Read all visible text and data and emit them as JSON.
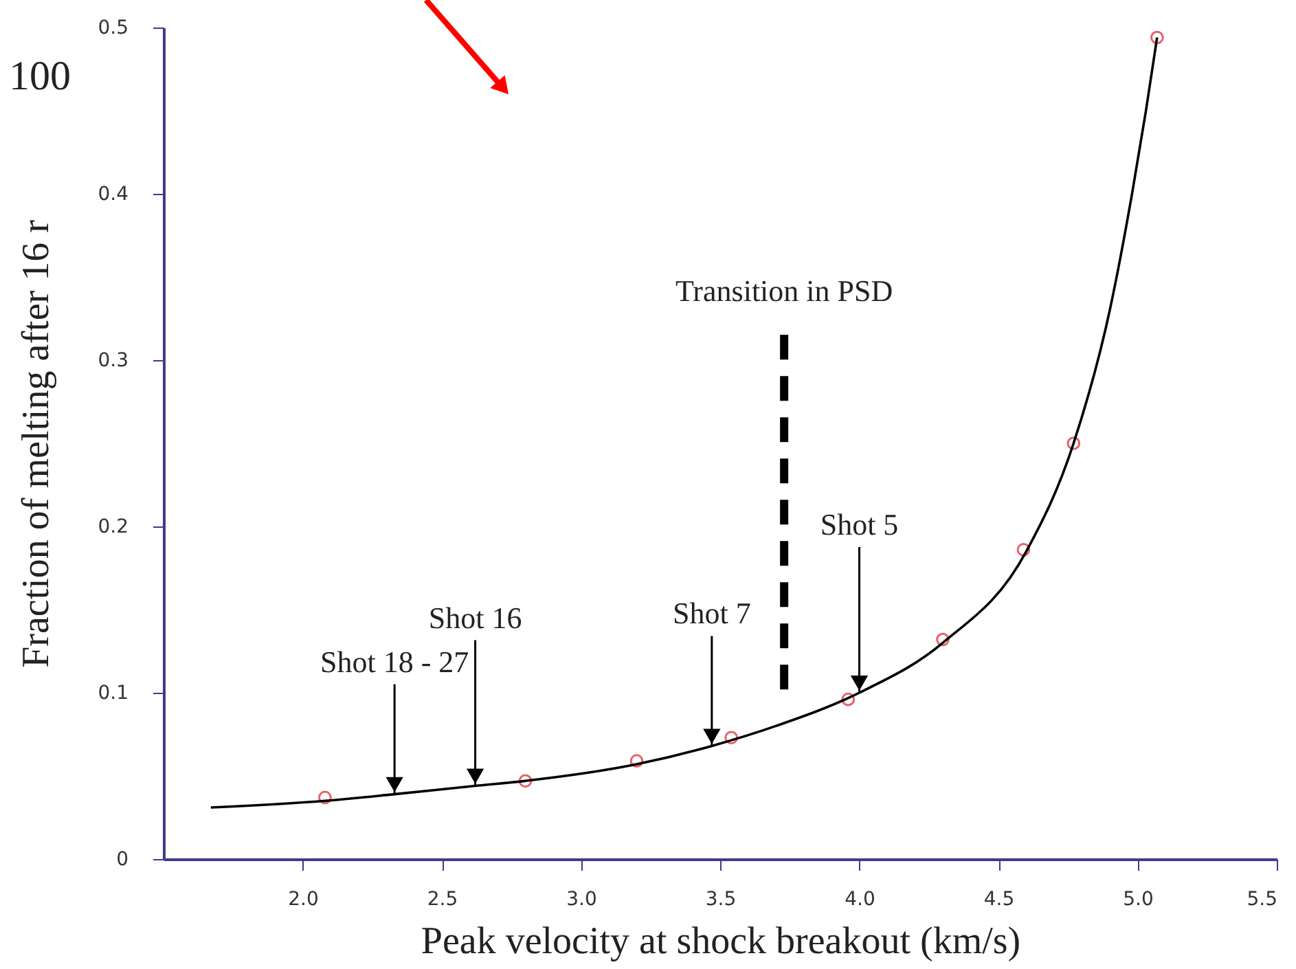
{
  "chart_data": {
    "type": "scatter",
    "xlabel": "Peak velocity at shock breakout (km/s)",
    "ylabel": "Fraction of melting after 16 r",
    "xlim": [
      1.5,
      5.5
    ],
    "xticks": [
      {
        "value": 2,
        "label": "2.0"
      },
      2.5,
      {
        "value": 3,
        "label": "3.0"
      },
      3.5,
      {
        "value": 4,
        "label": "4.0"
      },
      4.5,
      {
        "value": 5,
        "label": "5.0"
      },
      5.5
    ],
    "ylim": [
      0,
      0.5
    ],
    "yticks": [
      0,
      0.1,
      0.2,
      0.3,
      0.4,
      0.5
    ],
    "grid": false,
    "series": [
      {
        "color": "#e0202a",
        "marker": "circle",
        "x": [
          2.08,
          2.8,
          3.2,
          3.54,
          3.96,
          4.3,
          4.59,
          4.77,
          5.07
        ],
        "values": [
          0.037,
          0.047,
          0.059,
          0.073,
          0.096,
          0.132,
          0.186,
          0.25,
          0.494
        ]
      },
      {
        "type": "line",
        "color": "#000000",
        "x": [
          1.67,
          2.08,
          2.33,
          2.62,
          2.8,
          3.2,
          3.47,
          3.7,
          4.0,
          4.3,
          4.6,
          4.77,
          4.9,
          4.98,
          5.03,
          5.07
        ],
        "values": [
          0.031,
          0.035,
          0.039,
          0.044,
          0.047,
          0.057,
          0.068,
          0.08,
          0.1,
          0.13,
          0.185,
          0.25,
          0.33,
          0.4,
          0.45,
          0.494
        ]
      },
      {
        "type": "line",
        "color": "#000000",
        "line_style": "dashed",
        "x": [
          3.73,
          3.73
        ],
        "values": [
          0.102,
          0.32
        ]
      }
    ],
    "annotations": [
      {
        "text": "Transition in PSD",
        "x": 3.73,
        "y": 0.32
      },
      {
        "text": "Shot 18 - 27",
        "x": 2.33,
        "y": 0.039
      },
      {
        "text": "Shot 16",
        "x": 2.62,
        "y": 0.044
      },
      {
        "text": "Shot 7",
        "x": 3.47,
        "y": 0.068
      },
      {
        "text": "Shot 5",
        "x": 4.0,
        "y": 0.1
      },
      "100"
    ]
  }
}
